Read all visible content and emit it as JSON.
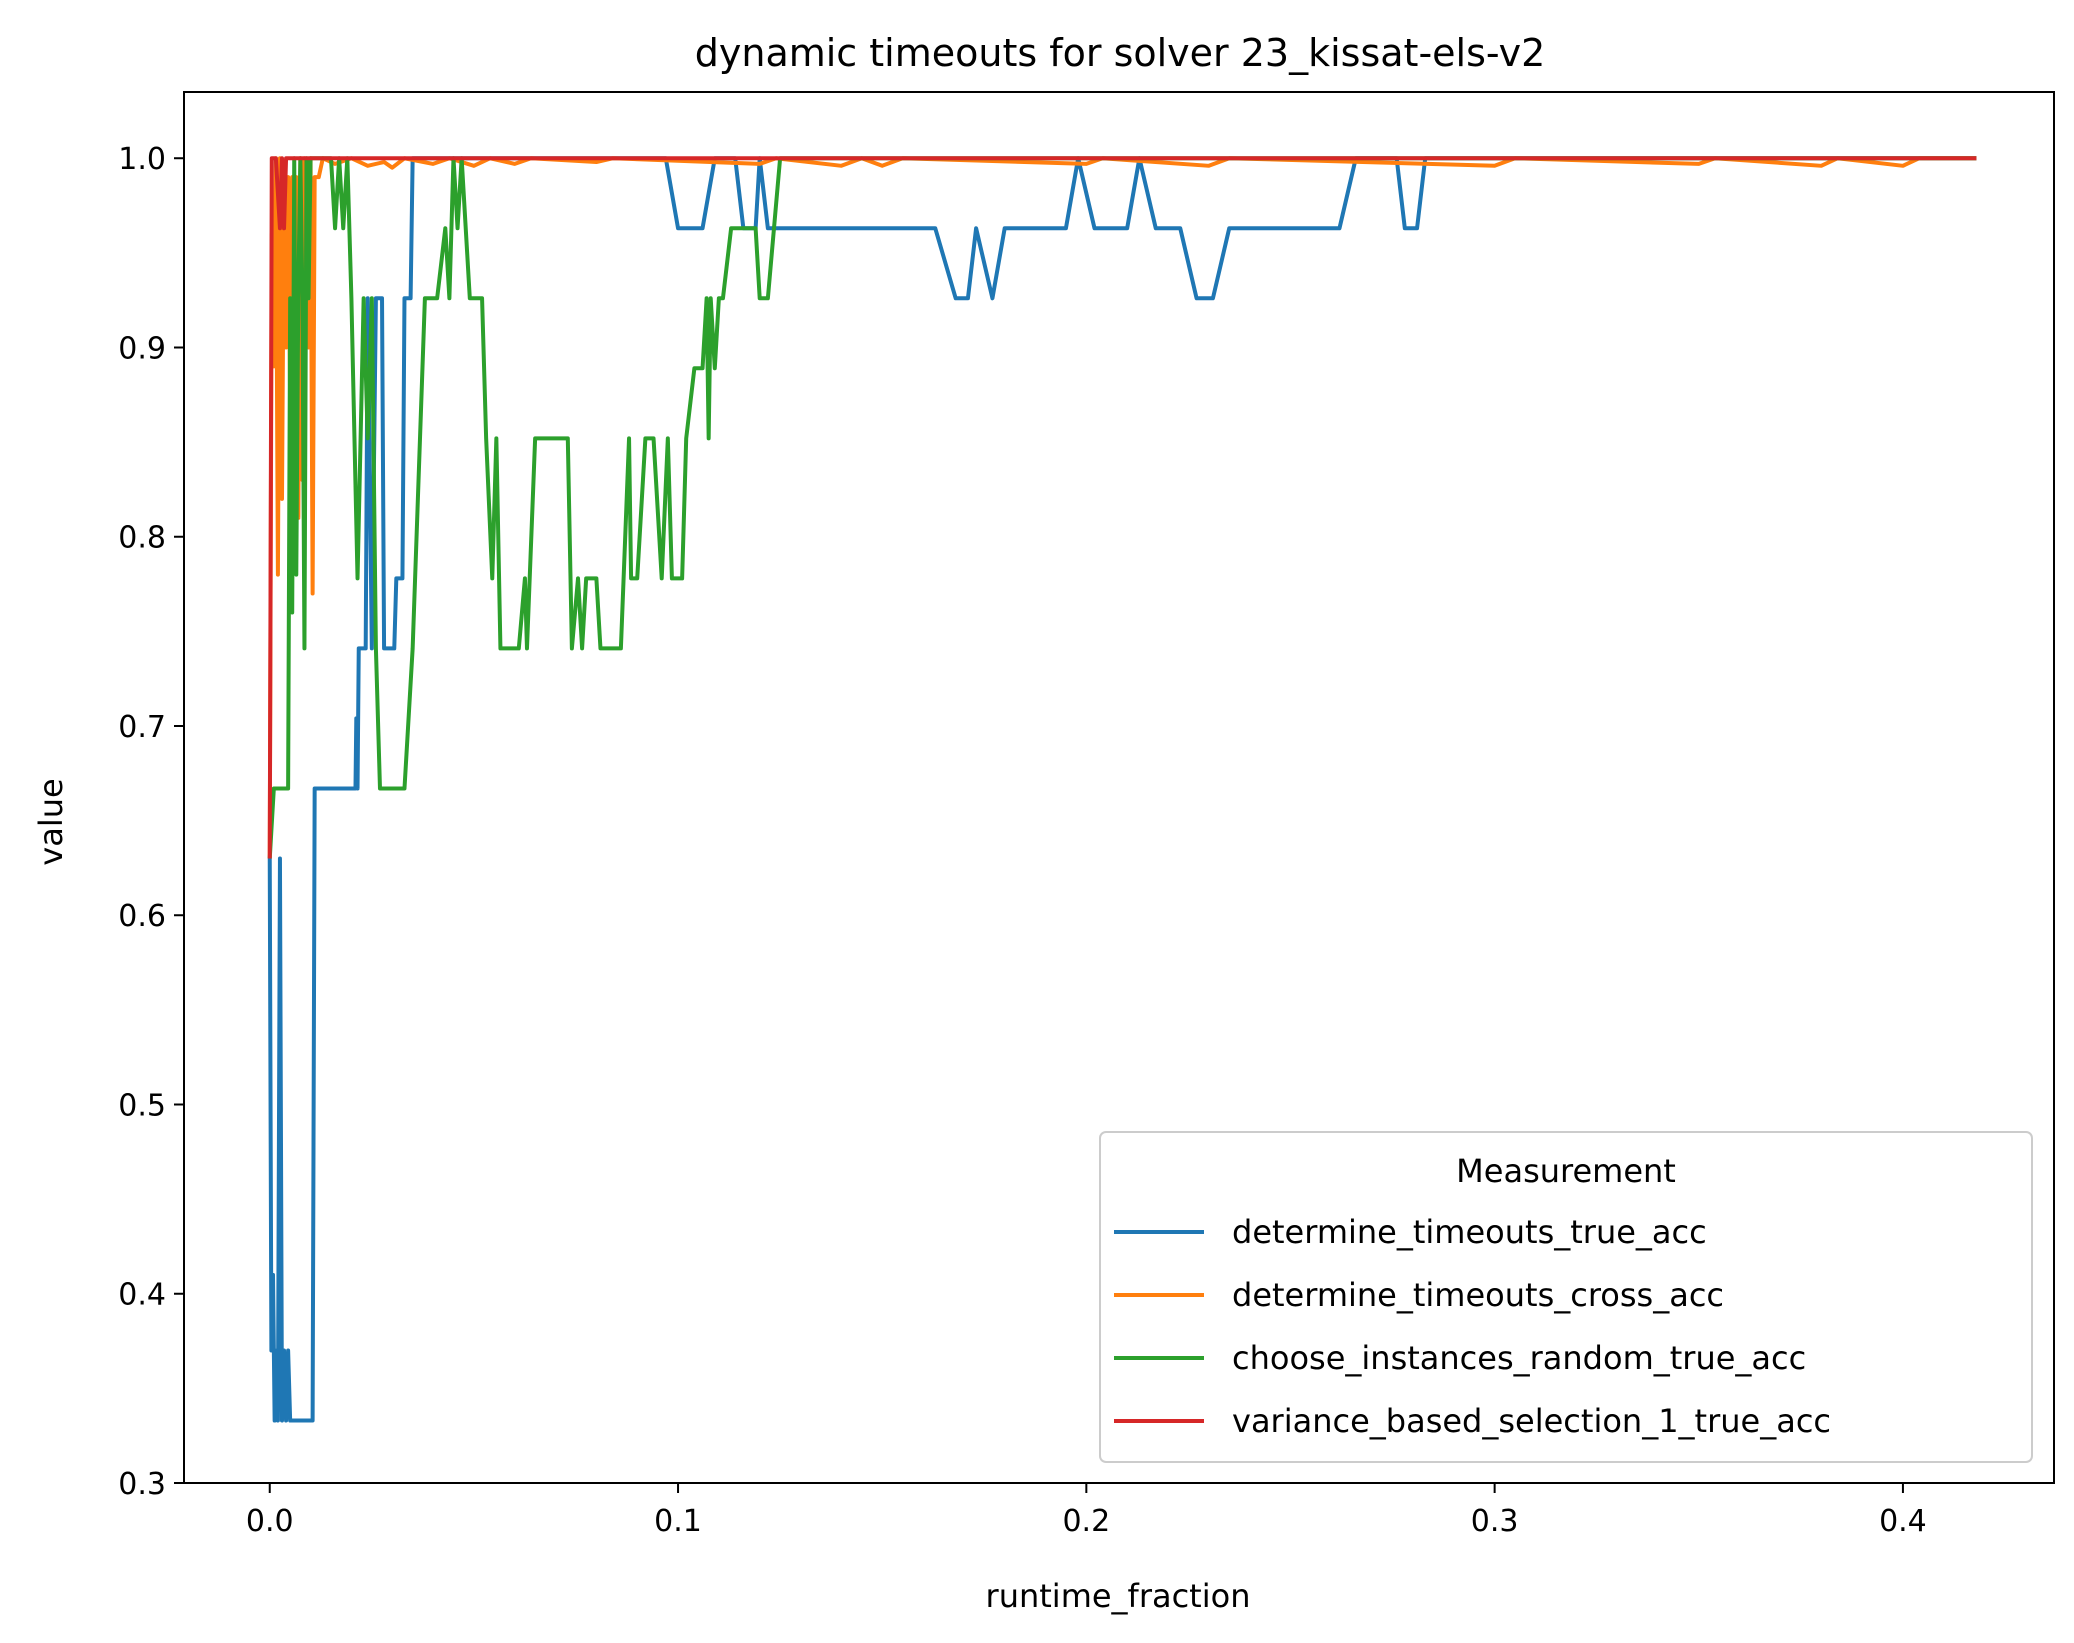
{
  "chart_data": {
    "type": "line",
    "title": "dynamic timeouts for solver 23_kissat-els-v2",
    "xlabel": "runtime_fraction",
    "ylabel": "value",
    "xlim": [
      -0.021,
      0.437
    ],
    "ylim": [
      0.3,
      1.035
    ],
    "xticks": [
      0.0,
      0.1,
      0.2,
      0.3,
      0.4
    ],
    "xtick_labels": [
      "0.0",
      "0.1",
      "0.2",
      "0.3",
      "0.4"
    ],
    "yticks": [
      0.3,
      0.4,
      0.5,
      0.6,
      0.7,
      0.8,
      0.9,
      1.0
    ],
    "ytick_labels": [
      "0.3",
      "0.4",
      "0.5",
      "0.6",
      "0.7",
      "0.8",
      "0.9",
      "1.0"
    ],
    "grid": false,
    "legend": {
      "title": "Measurement",
      "position": "lower-right"
    },
    "series": [
      {
        "name": "determine_timeouts_true_acc",
        "color": "#1f77b4",
        "points": [
          [
            0.0,
            0.63
          ],
          [
            0.0004,
            0.37
          ],
          [
            0.0008,
            0.41
          ],
          [
            0.0012,
            0.333
          ],
          [
            0.0016,
            0.37
          ],
          [
            0.002,
            0.333
          ],
          [
            0.0025,
            0.63
          ],
          [
            0.003,
            0.333
          ],
          [
            0.0035,
            0.37
          ],
          [
            0.004,
            0.333
          ],
          [
            0.0045,
            0.37
          ],
          [
            0.005,
            0.333
          ],
          [
            0.0105,
            0.333
          ],
          [
            0.011,
            0.667
          ],
          [
            0.021,
            0.667
          ],
          [
            0.0212,
            0.704
          ],
          [
            0.0215,
            0.667
          ],
          [
            0.0218,
            0.741
          ],
          [
            0.0235,
            0.741
          ],
          [
            0.024,
            0.926
          ],
          [
            0.025,
            0.741
          ],
          [
            0.026,
            0.926
          ],
          [
            0.0275,
            0.926
          ],
          [
            0.028,
            0.741
          ],
          [
            0.0305,
            0.741
          ],
          [
            0.031,
            0.778
          ],
          [
            0.0325,
            0.778
          ],
          [
            0.033,
            0.926
          ],
          [
            0.0345,
            0.926
          ],
          [
            0.035,
            1.0
          ],
          [
            0.097,
            1.0
          ],
          [
            0.1,
            0.963
          ],
          [
            0.106,
            0.963
          ],
          [
            0.109,
            1.0
          ],
          [
            0.114,
            1.0
          ],
          [
            0.116,
            0.963
          ],
          [
            0.119,
            0.963
          ],
          [
            0.12,
            1.0
          ],
          [
            0.122,
            0.963
          ],
          [
            0.163,
            0.963
          ],
          [
            0.168,
            0.926
          ],
          [
            0.171,
            0.926
          ],
          [
            0.173,
            0.963
          ],
          [
            0.177,
            0.926
          ],
          [
            0.18,
            0.963
          ],
          [
            0.195,
            0.963
          ],
          [
            0.198,
            1.0
          ],
          [
            0.202,
            0.963
          ],
          [
            0.21,
            0.963
          ],
          [
            0.213,
            1.0
          ],
          [
            0.217,
            0.963
          ],
          [
            0.223,
            0.963
          ],
          [
            0.227,
            0.926
          ],
          [
            0.231,
            0.926
          ],
          [
            0.235,
            0.963
          ],
          [
            0.262,
            0.963
          ],
          [
            0.266,
            1.0
          ],
          [
            0.276,
            1.0
          ],
          [
            0.278,
            0.963
          ],
          [
            0.281,
            0.963
          ],
          [
            0.283,
            1.0
          ],
          [
            0.418,
            1.0
          ]
        ]
      },
      {
        "name": "determine_timeouts_cross_acc",
        "color": "#ff7f0e",
        "points": [
          [
            0.0,
            0.63
          ],
          [
            0.0005,
            0.96
          ],
          [
            0.001,
            0.89
          ],
          [
            0.0015,
            1.0
          ],
          [
            0.002,
            0.78
          ],
          [
            0.0025,
            1.0
          ],
          [
            0.003,
            0.82
          ],
          [
            0.0035,
            0.99
          ],
          [
            0.004,
            0.9
          ],
          [
            0.0045,
            0.99
          ],
          [
            0.005,
            0.87
          ],
          [
            0.0055,
            0.99
          ],
          [
            0.006,
            0.93
          ],
          [
            0.0065,
            0.99
          ],
          [
            0.007,
            0.81
          ],
          [
            0.0075,
            1.0
          ],
          [
            0.008,
            0.83
          ],
          [
            0.0085,
            1.0
          ],
          [
            0.009,
            0.96
          ],
          [
            0.0095,
            0.9
          ],
          [
            0.01,
            1.0
          ],
          [
            0.0105,
            0.77
          ],
          [
            0.011,
            0.99
          ],
          [
            0.012,
            0.99
          ],
          [
            0.013,
            1.0
          ],
          [
            0.016,
            0.997
          ],
          [
            0.02,
            1.0
          ],
          [
            0.024,
            0.996
          ],
          [
            0.028,
            0.998
          ],
          [
            0.03,
            0.995
          ],
          [
            0.033,
            1.0
          ],
          [
            0.04,
            0.997
          ],
          [
            0.044,
            1.0
          ],
          [
            0.05,
            0.996
          ],
          [
            0.054,
            1.0
          ],
          [
            0.06,
            0.997
          ],
          [
            0.064,
            1.0
          ],
          [
            0.08,
            0.998
          ],
          [
            0.084,
            1.0
          ],
          [
            0.12,
            0.997
          ],
          [
            0.124,
            1.0
          ],
          [
            0.14,
            0.996
          ],
          [
            0.145,
            1.0
          ],
          [
            0.15,
            0.996
          ],
          [
            0.155,
            1.0
          ],
          [
            0.2,
            0.997
          ],
          [
            0.204,
            1.0
          ],
          [
            0.23,
            0.996
          ],
          [
            0.235,
            1.0
          ],
          [
            0.3,
            0.996
          ],
          [
            0.305,
            1.0
          ],
          [
            0.35,
            0.997
          ],
          [
            0.354,
            1.0
          ],
          [
            0.38,
            0.996
          ],
          [
            0.384,
            1.0
          ],
          [
            0.4,
            0.996
          ],
          [
            0.404,
            1.0
          ],
          [
            0.418,
            1.0
          ]
        ]
      },
      {
        "name": "choose_instances_random_true_acc",
        "color": "#2ca02c",
        "points": [
          [
            0.0,
            0.63
          ],
          [
            0.001,
            0.667
          ],
          [
            0.0045,
            0.667
          ],
          [
            0.005,
            0.926
          ],
          [
            0.0055,
            0.76
          ],
          [
            0.006,
            1.0
          ],
          [
            0.0065,
            0.78
          ],
          [
            0.007,
            0.93
          ],
          [
            0.0075,
            1.0
          ],
          [
            0.008,
            0.926
          ],
          [
            0.0085,
            0.741
          ],
          [
            0.009,
            1.0
          ],
          [
            0.0095,
            0.926
          ],
          [
            0.01,
            1.0
          ],
          [
            0.015,
            1.0
          ],
          [
            0.016,
            0.963
          ],
          [
            0.017,
            1.0
          ],
          [
            0.018,
            0.963
          ],
          [
            0.019,
            1.0
          ],
          [
            0.02,
            0.926
          ],
          [
            0.0215,
            0.778
          ],
          [
            0.023,
            0.926
          ],
          [
            0.024,
            0.852
          ],
          [
            0.025,
            0.926
          ],
          [
            0.026,
            0.741
          ],
          [
            0.027,
            0.667
          ],
          [
            0.033,
            0.667
          ],
          [
            0.035,
            0.741
          ],
          [
            0.038,
            0.926
          ],
          [
            0.041,
            0.926
          ],
          [
            0.043,
            0.963
          ],
          [
            0.044,
            0.926
          ],
          [
            0.045,
            1.0
          ],
          [
            0.046,
            0.963
          ],
          [
            0.047,
            1.0
          ],
          [
            0.049,
            0.926
          ],
          [
            0.052,
            0.926
          ],
          [
            0.053,
            0.852
          ],
          [
            0.0545,
            0.778
          ],
          [
            0.0555,
            0.852
          ],
          [
            0.0565,
            0.741
          ],
          [
            0.061,
            0.741
          ],
          [
            0.0625,
            0.778
          ],
          [
            0.063,
            0.741
          ],
          [
            0.065,
            0.852
          ],
          [
            0.073,
            0.852
          ],
          [
            0.074,
            0.741
          ],
          [
            0.0755,
            0.778
          ],
          [
            0.0765,
            0.741
          ],
          [
            0.0775,
            0.778
          ],
          [
            0.08,
            0.778
          ],
          [
            0.081,
            0.741
          ],
          [
            0.086,
            0.741
          ],
          [
            0.088,
            0.852
          ],
          [
            0.0885,
            0.778
          ],
          [
            0.09,
            0.778
          ],
          [
            0.092,
            0.852
          ],
          [
            0.094,
            0.852
          ],
          [
            0.096,
            0.778
          ],
          [
            0.0975,
            0.852
          ],
          [
            0.0985,
            0.778
          ],
          [
            0.101,
            0.778
          ],
          [
            0.102,
            0.852
          ],
          [
            0.104,
            0.889
          ],
          [
            0.106,
            0.889
          ],
          [
            0.107,
            0.926
          ],
          [
            0.1075,
            0.852
          ],
          [
            0.108,
            0.926
          ],
          [
            0.109,
            0.889
          ],
          [
            0.11,
            0.926
          ],
          [
            0.111,
            0.926
          ],
          [
            0.113,
            0.963
          ],
          [
            0.119,
            0.963
          ],
          [
            0.12,
            0.926
          ],
          [
            0.122,
            0.926
          ],
          [
            0.125,
            1.0
          ],
          [
            0.418,
            1.0
          ]
        ]
      },
      {
        "name": "variance_based_selection_1_true_acc",
        "color": "#d62728",
        "points": [
          [
            0.0,
            0.63
          ],
          [
            0.0005,
            1.0
          ],
          [
            0.0015,
            1.0
          ],
          [
            0.0025,
            0.963
          ],
          [
            0.003,
            1.0
          ],
          [
            0.0035,
            0.963
          ],
          [
            0.004,
            1.0
          ],
          [
            0.418,
            1.0
          ]
        ]
      }
    ]
  }
}
